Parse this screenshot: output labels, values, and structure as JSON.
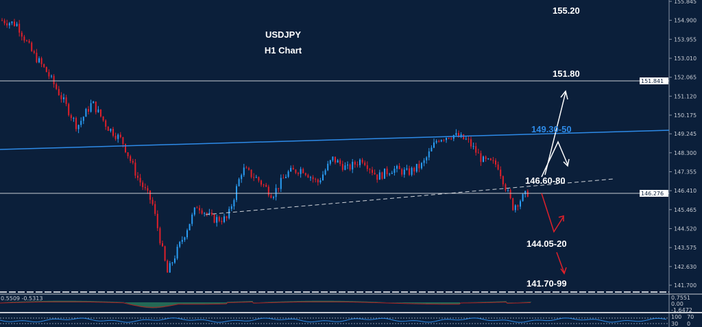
{
  "chart_data": {
    "type": "candlestick",
    "title": "USDJPY",
    "subtitle": "H1 Chart",
    "symbol": "USDJPY",
    "timeframe": "H1",
    "ylim": [
      141.7,
      155.845
    ],
    "y_ticks": [
      "155.845",
      "154.900",
      "153.955",
      "153.010",
      "152.065",
      "151.120",
      "150.175",
      "149.245",
      "148.300",
      "147.355",
      "146.410",
      "145.465",
      "144.520",
      "143.575",
      "142.630",
      "141.700"
    ],
    "price_tags": [
      "151.841",
      "146.276"
    ],
    "approx_closes": [
      154.9,
      154.7,
      153.3,
      152.3,
      151.0,
      149.6,
      150.8,
      149.6,
      148.9,
      147.1,
      145.8,
      142.3,
      144.0,
      145.7,
      145.0,
      145.0,
      147.5,
      147.0,
      146.2,
      147.3,
      147.5,
      146.8,
      148.0,
      147.5,
      148.0,
      147.1,
      147.5,
      147.3,
      147.7,
      149.0,
      149.2,
      148.9,
      147.9,
      147.7,
      145.6,
      146.3
    ],
    "levels": {
      "horizontal": [
        "151.80",
        "146.276"
      ],
      "trendline": "149.30-50",
      "support_trendline": "146.60-80"
    },
    "annotations": [
      "155.20",
      "151.80",
      "149.30-50",
      "146.60-80",
      "144.05-20",
      "141.70-99"
    ],
    "macd": {
      "values_label": "0.5509 -0.5313",
      "ticks": [
        "0.7551",
        "0.00",
        "-1.6472"
      ]
    },
    "rsi": {
      "ticks": [
        "100",
        "70",
        "30",
        "0"
      ]
    },
    "colors": {
      "background": "#0b1f3a",
      "up": "#2a9df4",
      "down": "#e0202a",
      "trendline": "#2e8be8",
      "annotation_blue": "#2e8be8",
      "arrow_red": "#e0202a",
      "macd_hist": "#3cb371",
      "macd_signal": "#b22222"
    }
  }
}
